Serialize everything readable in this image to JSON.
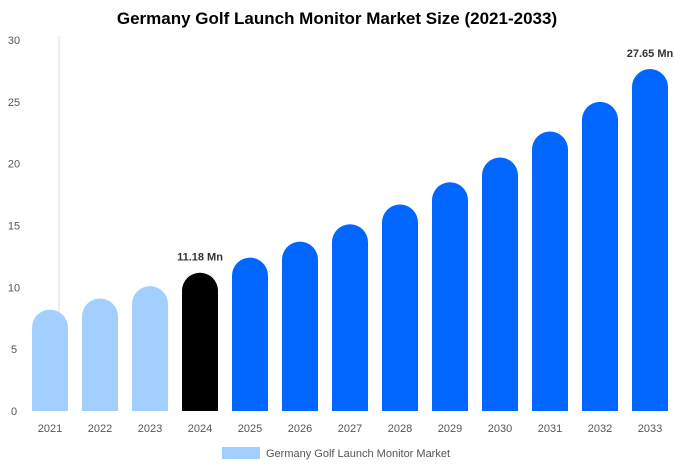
{
  "chart_data": {
    "type": "bar",
    "title": "Germany Golf Launch Monitor Market Size (2021-2033)",
    "xlabel": "",
    "ylabel": "",
    "ylim": [
      0,
      30
    ],
    "yticks": [
      0,
      5,
      10,
      15,
      20,
      25,
      30
    ],
    "grid": false,
    "legend_placement": "bottom",
    "categories": [
      "2021",
      "2022",
      "2023",
      "2024",
      "2025",
      "2026",
      "2027",
      "2028",
      "2029",
      "2030",
      "2031",
      "2032",
      "2033"
    ],
    "series": [
      {
        "name": "Germany Golf Launch Monitor Market",
        "values": [
          8.2,
          9.1,
          10.1,
          11.18,
          12.4,
          13.7,
          15.1,
          16.7,
          18.5,
          20.5,
          22.6,
          25.0,
          27.65
        ]
      }
    ],
    "bar_colors": {
      "historical": "#a3cfff",
      "base_year": "#000000",
      "forecast": "#0066ff"
    },
    "color_groups": [
      "historical",
      "historical",
      "historical",
      "base_year",
      "forecast",
      "forecast",
      "forecast",
      "forecast",
      "forecast",
      "forecast",
      "forecast",
      "forecast",
      "forecast"
    ],
    "data_labels": [
      {
        "category": "2024",
        "text": "11.18 Mn"
      },
      {
        "category": "2033",
        "text": "27.65 Mn"
      }
    ]
  }
}
